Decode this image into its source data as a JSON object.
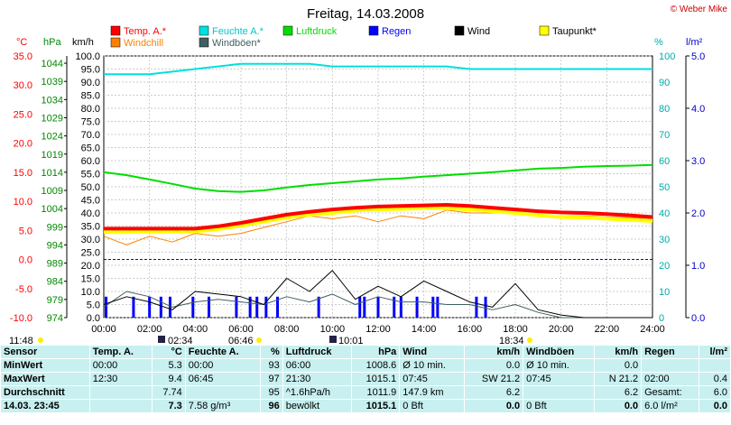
{
  "header": {
    "title": "Freitag, 14.03.2008",
    "credit": "© Weber Mike"
  },
  "axes": {
    "temp": {
      "unit": "°C",
      "ticks": [
        "35.0",
        "30.0",
        "25.0",
        "20.0",
        "15.0",
        "10.0",
        "5.0",
        "0.0",
        "-5.0",
        "-10.0"
      ]
    },
    "hpa": {
      "unit": "hPa",
      "ticks": [
        "1044",
        "1039",
        "1034",
        "1029",
        "1024",
        "1019",
        "1014",
        "1009",
        "1004",
        "999",
        "994",
        "989",
        "984",
        "979",
        "974"
      ]
    },
    "kmh": {
      "unit": "km/h",
      "ticks": [
        "100.0",
        "95.0",
        "90.0",
        "85.0",
        "80.0",
        "75.0",
        "70.0",
        "65.0",
        "60.0",
        "55.0",
        "50.0",
        "45.0",
        "40.0",
        "35.0",
        "30.0",
        "25.0",
        "20.0",
        "15.0",
        "10.0",
        "5.0",
        "0.0"
      ]
    },
    "pct": {
      "unit": "%",
      "ticks": [
        "100",
        "90",
        "80",
        "70",
        "60",
        "50",
        "40",
        "30",
        "20",
        "10",
        "0"
      ]
    },
    "rain": {
      "unit": "l/m²",
      "ticks": [
        "5.0",
        "4.0",
        "3.0",
        "2.0",
        "1.0",
        "0.0"
      ]
    },
    "x": {
      "ticks": [
        "00:00",
        "02:00",
        "04:00",
        "06:00",
        "08:00",
        "10:00",
        "12:00",
        "14:00",
        "16:00",
        "18:00",
        "20:00",
        "22:00",
        "24:00"
      ]
    }
  },
  "legend": [
    {
      "label": "Temp. A.*",
      "color": "#ff0000"
    },
    {
      "label": "Feuchte A.*",
      "color": "#00e0e0"
    },
    {
      "label": "Luftdruck",
      "color": "#00dd00"
    },
    {
      "label": "Regen",
      "color": "#0000ff"
    },
    {
      "label": "Wind",
      "color": "#000000"
    },
    {
      "label": "Taupunkt*",
      "color": "#ffff00"
    },
    {
      "label": "Windchill",
      "color": "#ff8000"
    },
    {
      "label": "Windböen*",
      "color": "#406060"
    }
  ],
  "sun": {
    "sunrise": "06:46",
    "sunset": "18:34",
    "moonrise": "02:34",
    "moonset": "10:01",
    "left_time": "11:48"
  },
  "chart_data": {
    "type": "line",
    "x_unit": "hours",
    "x": [
      0,
      1,
      2,
      3,
      4,
      5,
      6,
      7,
      8,
      9,
      10,
      11,
      12,
      13,
      14,
      15,
      16,
      17,
      18,
      19,
      20,
      21,
      22,
      23,
      24
    ],
    "series": [
      {
        "name": "Temp. A.*",
        "axis": "°C",
        "values": [
          5.3,
          5.3,
          5.3,
          5.3,
          5.3,
          5.7,
          6.3,
          7.0,
          7.7,
          8.2,
          8.6,
          8.9,
          9.1,
          9.2,
          9.3,
          9.4,
          9.2,
          8.9,
          8.6,
          8.3,
          8.1,
          8.0,
          7.8,
          7.6,
          7.3
        ]
      },
      {
        "name": "Taupunkt*",
        "axis": "°C",
        "values": [
          4.7,
          4.7,
          4.8,
          4.8,
          4.8,
          5.2,
          5.8,
          6.5,
          7.2,
          7.7,
          8.0,
          8.4,
          8.6,
          8.7,
          8.8,
          8.8,
          8.6,
          8.3,
          8.0,
          7.6,
          7.3,
          7.2,
          7.0,
          6.8,
          6.6
        ]
      },
      {
        "name": "Windchill",
        "axis": "°C",
        "values": [
          4.0,
          2.5,
          4.0,
          3.0,
          4.5,
          4.0,
          4.5,
          5.5,
          6.5,
          7.5,
          7.0,
          7.5,
          6.5,
          7.5,
          7.0,
          8.5,
          8.0,
          8.0,
          8.0,
          7.6,
          7.5,
          7.5,
          7.3,
          7.2,
          7.0
        ]
      },
      {
        "name": "Feuchte A.*",
        "axis": "%",
        "values": [
          93,
          93,
          93,
          94,
          95,
          96,
          97,
          97,
          97,
          97,
          96,
          96,
          96,
          96,
          96,
          96,
          95,
          95,
          95,
          95,
          95,
          95,
          95,
          95,
          95
        ]
      },
      {
        "name": "Luftdruck",
        "axis": "hPa",
        "values": [
          1014.0,
          1013.2,
          1012.0,
          1010.8,
          1009.5,
          1008.8,
          1008.6,
          1009.0,
          1009.8,
          1010.5,
          1011.0,
          1011.5,
          1012.0,
          1012.3,
          1012.8,
          1013.2,
          1013.6,
          1014.0,
          1014.5,
          1015.0,
          1015.2,
          1015.5,
          1015.7,
          1015.8,
          1016.0
        ]
      },
      {
        "name": "Wind",
        "axis": "km/h",
        "values": [
          5,
          8,
          6,
          3,
          10,
          9,
          8,
          5,
          15,
          10,
          18,
          7,
          12,
          8,
          14,
          10,
          6,
          4,
          13,
          3,
          1,
          0,
          0,
          0,
          0
        ]
      },
      {
        "name": "Windböen*",
        "axis": "km/h",
        "values": [
          4,
          10,
          8,
          4,
          6,
          7,
          6,
          5,
          8,
          6,
          9,
          5,
          8,
          6,
          6,
          5,
          5,
          3,
          5,
          2,
          0,
          0,
          0,
          0,
          0
        ]
      }
    ],
    "rain_bars_hours": [
      0.1,
      1.3,
      2.0,
      2.5,
      2.9,
      3.9,
      4.6,
      5.8,
      6.4,
      6.7,
      7.1,
      7.6,
      9.4,
      11.2,
      11.4,
      12.0,
      12.7,
      13.0,
      13.7,
      14.4,
      14.6,
      16.3,
      16.7
    ],
    "rain_bar_value": 0.4,
    "reference_line": {
      "axis": "°C",
      "value": 0.0
    }
  },
  "table": {
    "headers": [
      "Sensor",
      "Temp. A.",
      "°C",
      "Feuchte A.",
      "%",
      "Luftdruck",
      "hPa",
      "Wind",
      "km/h",
      "Windböen",
      "km/h",
      "Regen",
      "l/m²"
    ],
    "rows": [
      {
        "label": "MinWert",
        "cells": [
          "00:00",
          "5.3",
          "00:00",
          "93",
          "06:00",
          "1008.6",
          "Ø 10 min.",
          "0.0",
          "Ø 10 min.",
          "0.0",
          "",
          ""
        ]
      },
      {
        "label": "MaxWert",
        "cells": [
          "12:30",
          "9.4",
          "06:45",
          "97",
          "21:30",
          "1015.1",
          "07:45",
          "SW 21.2",
          "07:45",
          "N 21.2",
          "02:00",
          "0.4"
        ]
      },
      {
        "label": "Durchschnitt",
        "cells": [
          "",
          "7.74",
          "",
          "95",
          "^1.6hPa/h",
          "1011.9",
          "147.9 km",
          "6.2",
          "",
          "6.2",
          "Gesamt:",
          "6.0"
        ]
      },
      {
        "label": "14.03. 23:45",
        "cells": [
          "",
          "7.3",
          "7.58 g/m³",
          "96",
          "bewölkt",
          "1015.1",
          "0 Bft",
          "0.0",
          "0 Bft",
          "0.0",
          "6.0 l/m²",
          "0.0"
        ]
      }
    ]
  }
}
